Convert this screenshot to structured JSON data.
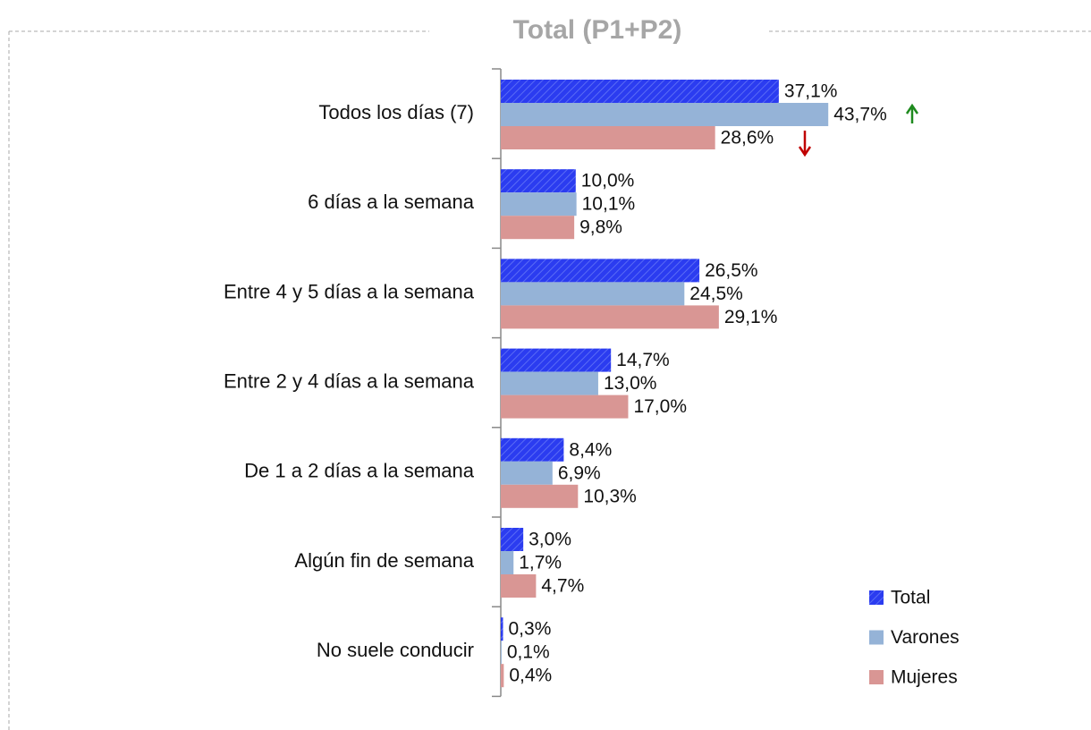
{
  "chart_data": {
    "type": "bar",
    "orientation": "horizontal",
    "title": "Total (P1+P2)",
    "categories": [
      "Todos los días (7)",
      "6 días a la semana",
      "Entre 4 y 5 días a la semana",
      "Entre 2 y 4 días a la semana",
      "De 1 a 2 días a la semana",
      "Algún fin de semana",
      "No suele conducir"
    ],
    "series": [
      {
        "name": "Total",
        "color": "#2b3cf0",
        "pattern": "hatch",
        "values": [
          37.1,
          10.0,
          26.5,
          14.7,
          8.4,
          3.0,
          0.3
        ],
        "value_labels": [
          "37,1%",
          "10,0%",
          "26,5%",
          "14,7%",
          "8,4%",
          "3,0%",
          "0,3%"
        ]
      },
      {
        "name": "Varones",
        "color": "#95b3d7",
        "values": [
          43.7,
          10.1,
          24.5,
          13.0,
          6.9,
          1.7,
          0.1
        ],
        "value_labels": [
          "43,7%",
          "10,1%",
          "24,5%",
          "13,0%",
          "6,9%",
          "1,7%",
          "0,1%"
        ]
      },
      {
        "name": "Mujeres",
        "color": "#d99694",
        "values": [
          28.6,
          9.8,
          29.1,
          17.0,
          10.3,
          4.7,
          0.4
        ],
        "value_labels": [
          "28,6%",
          "9,8%",
          "29,1%",
          "17,0%",
          "10,3%",
          "4,7%",
          "0,4%"
        ]
      }
    ],
    "legend": "bottom-right"
  }
}
